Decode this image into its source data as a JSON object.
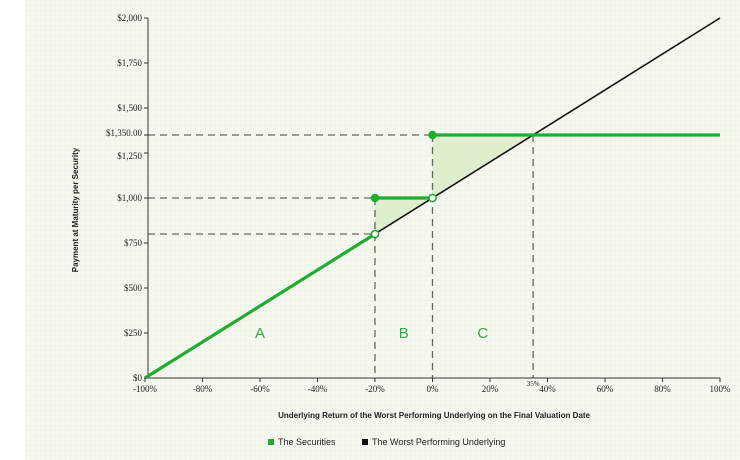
{
  "chart_data": {
    "type": "line",
    "xlabel": "Underlying Return of the Worst Performing Underlying on the Final Valuation Date",
    "ylabel": "Payment at Maturity per Security",
    "xlim": [
      -100,
      100
    ],
    "ylim": [
      0,
      2000
    ],
    "x_ticks": [
      "-100%",
      "-80%",
      "-60%",
      "-40%",
      "-20%",
      "0%",
      "20%",
      "40%",
      "60%",
      "80%",
      "100%"
    ],
    "x_tick_values": [
      -100,
      -80,
      -60,
      -40,
      -20,
      0,
      20,
      40,
      60,
      80,
      100
    ],
    "y_ticks": [
      "$0",
      "$250",
      "$500",
      "$750",
      "$1,000",
      "$1,250",
      "$1,350.00",
      "$1,500",
      "$1,750",
      "$2,000"
    ],
    "y_tick_values": [
      0,
      250,
      500,
      750,
      1000,
      1250,
      1350,
      1500,
      1750,
      2000
    ],
    "x_annotation": "35%",
    "x_annotation_value": 35,
    "regions": [
      {
        "label": "A",
        "x": -60
      },
      {
        "label": "B",
        "x": -10
      },
      {
        "label": "C",
        "x": 17.5
      }
    ],
    "legend": {
      "placement": "bottom-center",
      "entries": [
        "The Securities",
        "The Worst Performing Underlying"
      ]
    },
    "series": [
      {
        "name": "The Securities",
        "color": "#22aa33",
        "segments": [
          [
            [
              -100,
              0
            ],
            [
              -20,
              800
            ]
          ],
          [
            [
              -20,
              1000
            ],
            [
              0,
              1000
            ]
          ],
          [
            [
              0,
              1350
            ],
            [
              100,
              1350
            ]
          ]
        ],
        "filled_points": [
          [
            -20,
            1000
          ],
          [
            0,
            1350
          ]
        ],
        "open_points": [
          [
            -20,
            800
          ],
          [
            0,
            1000
          ]
        ]
      },
      {
        "name": "The Worst Performing Underlying",
        "color": "#111111",
        "points": [
          [
            -100,
            0
          ],
          [
            100,
            2000
          ]
        ]
      }
    ],
    "reference_lines": {
      "y": [
        800,
        1000,
        1350
      ],
      "x": [
        -20,
        0,
        35
      ]
    },
    "shaded_regions": [
      {
        "color": "#dfeecd",
        "polygon": [
          [
            -20,
            800
          ],
          [
            -20,
            1000
          ],
          [
            0,
            1000
          ]
        ]
      },
      {
        "color": "#dfeecd",
        "polygon": [
          [
            0,
            1000
          ],
          [
            0,
            1350
          ],
          [
            35,
            1350
          ]
        ]
      }
    ],
    "grid": false
  }
}
